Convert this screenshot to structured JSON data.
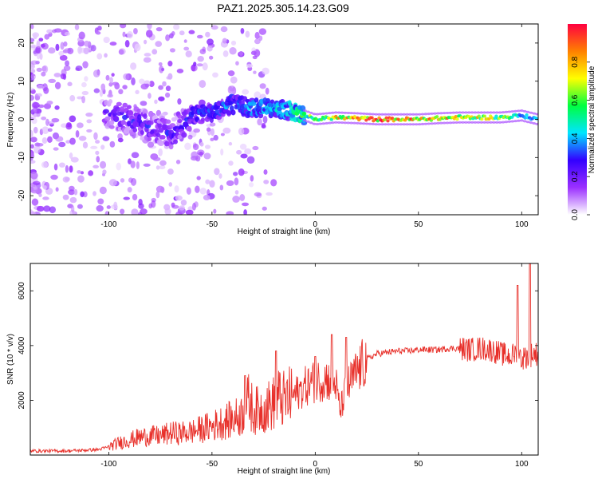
{
  "title": "PAZ1.2025.305.14.23.G09",
  "chart_data": [
    {
      "type": "heatmap",
      "name": "spectrogram",
      "xlabel": "Height of straight line (km)",
      "ylabel": "Frequency (Hz)",
      "xlim": [
        -138,
        108
      ],
      "ylim": [
        -25,
        25
      ],
      "xticks": [
        -100,
        -50,
        0,
        50,
        100
      ],
      "xtick_labels": [
        "-100",
        "-50",
        "0",
        "50",
        "100"
      ],
      "yticks": [
        -20,
        -10,
        0,
        10,
        20
      ],
      "ytick_labels": [
        "-20",
        "-10",
        "0",
        "10",
        "20"
      ],
      "colorbar": {
        "label": "Normalized spectral amplitude",
        "range": [
          0.0,
          1.0
        ],
        "ticks": [
          0.0,
          0.2,
          0.4,
          0.6,
          0.8
        ],
        "tick_labels": [
          "0.0",
          "0.2",
          "0.4",
          "0.6",
          "0.8"
        ],
        "colormap": [
          "#ffffff",
          "#9b30ff",
          "#3300ff",
          "#00e5ff",
          "#00ff40",
          "#ffff00",
          "#ff8000",
          "#ff0040"
        ]
      },
      "ridge": {
        "x": [
          -100,
          -90,
          -80,
          -70,
          -60,
          -50,
          -40,
          -30,
          -20,
          -10,
          -5,
          0,
          10,
          20,
          30,
          40,
          50,
          60,
          70,
          80,
          90,
          100,
          108
        ],
        "freq": [
          1.5,
          0,
          -2,
          -4,
          1,
          2,
          4,
          3,
          3,
          2,
          1,
          0,
          0.5,
          0.3,
          0,
          0,
          0,
          0.3,
          0.5,
          0.5,
          0.5,
          1,
          0
        ],
        "amplitude": [
          0.25,
          0.3,
          0.3,
          0.3,
          0.35,
          0.35,
          0.4,
          0.45,
          0.45,
          0.55,
          0.6,
          0.7,
          0.8,
          0.85,
          0.95,
          0.95,
          0.9,
          0.85,
          0.8,
          0.75,
          0.7,
          0.5,
          0.4
        ]
      }
    },
    {
      "type": "line",
      "name": "snr",
      "xlabel": "Height of straight line (km)",
      "ylabel": "SNR (10 * v/v)",
      "xlim": [
        -138,
        108
      ],
      "ylim": [
        0,
        7000
      ],
      "xticks": [
        -100,
        -50,
        0,
        50,
        100
      ],
      "xtick_labels": [
        "-100",
        "-50",
        "0",
        "50",
        "100"
      ],
      "yticks": [
        2000,
        4000,
        6000
      ],
      "ytick_labels": [
        "2000",
        "4000",
        "6000"
      ],
      "color": "#e8302a",
      "series": [
        {
          "name": "SNR",
          "x": [
            -138,
            -120,
            -105,
            -100,
            -95,
            -90,
            -85,
            -80,
            -75,
            -70,
            -65,
            -60,
            -55,
            -50,
            -45,
            -40,
            -35,
            -32,
            -30,
            -25,
            -20,
            -18,
            -15,
            -10,
            -5,
            0,
            5,
            10,
            12,
            15,
            20,
            25,
            30,
            35,
            40,
            45,
            50,
            55,
            60,
            65,
            70,
            75,
            80,
            85,
            90,
            95,
            98,
            100,
            102,
            104,
            105,
            108
          ],
          "y": [
            150,
            150,
            200,
            300,
            450,
            550,
            650,
            700,
            700,
            800,
            800,
            850,
            950,
            1050,
            1200,
            1300,
            1500,
            2000,
            1600,
            1700,
            1900,
            2100,
            2000,
            2200,
            2500,
            2700,
            2800,
            2600,
            1600,
            2400,
            3000,
            3500,
            3700,
            3750,
            3800,
            3800,
            3850,
            3850,
            3850,
            3900,
            3900,
            3850,
            3900,
            3850,
            3700,
            3600,
            3800,
            3500,
            3600,
            3600,
            3700,
            3700
          ]
        }
      ],
      "spikes": [
        {
          "x": -34,
          "y": 2900
        },
        {
          "x": -19,
          "y": 3800
        },
        {
          "x": 0,
          "y": 3600
        },
        {
          "x": 8,
          "y": 4400
        },
        {
          "x": 15,
          "y": 4300
        },
        {
          "x": 98,
          "y": 6200
        },
        {
          "x": 104,
          "y": 7000
        }
      ]
    }
  ]
}
